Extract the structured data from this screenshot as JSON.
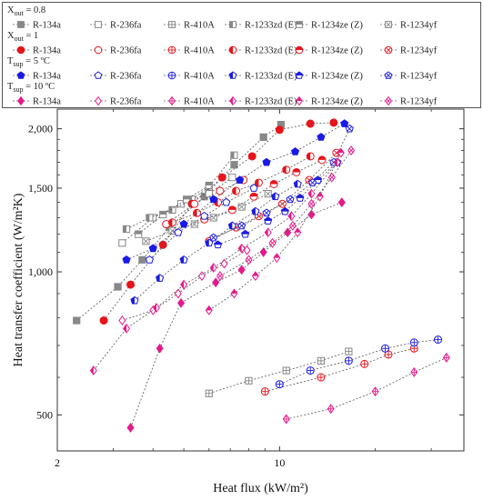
{
  "chart_data": {
    "type": "scatter",
    "xlabel": "Heat flux (kW/m²)",
    "ylabel": "Heat transfer coefficient (W/m²K)",
    "x_scale": "log",
    "y_scale": "log",
    "xlim": [
      2,
      38
    ],
    "ylim": [
      420,
      2200
    ],
    "x_ticks": [
      {
        "value": 2,
        "label": "2"
      },
      {
        "value": 10,
        "label": "10"
      }
    ],
    "y_ticks": [
      {
        "value": 500,
        "label": "500"
      },
      {
        "value": 1000,
        "label": "1,000"
      },
      {
        "value": 1500,
        "label": "1,500"
      },
      {
        "value": 2000,
        "label": "2,000"
      }
    ],
    "legend_position": "top",
    "refrigerants": [
      "R-134a",
      "R-236fa",
      "R-410A",
      "R-1233zd (E)",
      "R-1234ze (Z)",
      "R-1234yf"
    ],
    "groups": [
      {
        "title": "X",
        "sub": "out",
        "rest": " = 0.8",
        "color": "#888888"
      },
      {
        "title": "X",
        "sub": "out",
        "rest": " = 1",
        "color": "#e8141c"
      },
      {
        "title": "T",
        "sub": "sup",
        "rest": " = 5 ºC",
        "color": "#1a1ae6"
      },
      {
        "title": "T",
        "sub": "sup",
        "rest": " = 10 ºC",
        "color": "#e6198c"
      }
    ],
    "series": [
      {
        "group": 0,
        "name": "R-134a",
        "marker": "square-filled",
        "x": [
          2.3,
          3.1,
          3.7,
          4.5,
          5.8,
          7.2,
          8.9,
          10.1
        ],
        "y": [
          790,
          930,
          1060,
          1240,
          1440,
          1680,
          1920,
          2040
        ]
      },
      {
        "group": 0,
        "name": "R-236fa",
        "marker": "square-open",
        "x": [
          3.2,
          4.0,
          4.9,
          6.0,
          7.1
        ],
        "y": [
          1150,
          1300,
          1390,
          1460,
          1580
        ]
      },
      {
        "group": 0,
        "name": "R-410A",
        "marker": "square-cross",
        "x": [
          6.0,
          8.0,
          10.5,
          13.5,
          16.5
        ],
        "y": [
          555,
          590,
          620,
          650,
          680
        ]
      },
      {
        "group": 0,
        "name": "R-1233zd (E)",
        "marker": "square-half-left",
        "x": [
          3.3,
          3.9,
          4.6,
          5.3,
          6.0,
          7.2
        ],
        "y": [
          1230,
          1300,
          1350,
          1420,
          1510,
          1760
        ]
      },
      {
        "group": 0,
        "name": "R-1234ze (Z)",
        "marker": "square-half-top",
        "x": [
          3.6,
          4.3,
          5.1,
          6.0
        ],
        "y": [
          1200,
          1320,
          1420,
          1520
        ]
      },
      {
        "group": 0,
        "name": "R-1234yf",
        "marker": "square-x",
        "x": [
          3.8,
          4.6,
          5.4,
          6.2,
          7.6,
          9.2
        ],
        "y": [
          1160,
          1220,
          1260,
          1300,
          1370,
          1460
        ]
      },
      {
        "group": 1,
        "name": "R-134a",
        "marker": "circle-filled",
        "x": [
          2.8,
          3.4,
          4.3,
          5.3,
          6.6,
          8.2,
          10.0,
          12.5,
          14.8
        ],
        "y": [
          790,
          940,
          1140,
          1390,
          1580,
          1750,
          1990,
          2050,
          2060
        ]
      },
      {
        "group": 1,
        "name": "R-236fa",
        "marker": "circle-open",
        "x": [
          4.4,
          5.4,
          6.5,
          7.7
        ],
        "y": [
          1260,
          1390,
          1480,
          1560
        ]
      },
      {
        "group": 1,
        "name": "R-410A",
        "marker": "circle-cross",
        "x": [
          9.0,
          13.5,
          18.5,
          22.0,
          26.5
        ],
        "y": [
          560,
          600,
          640,
          670,
          690
        ]
      },
      {
        "group": 1,
        "name": "R-1233zd (E)",
        "marker": "circle-half-left",
        "x": [
          4.6,
          5.5,
          6.4,
          7.3,
          8.6,
          10.5,
          12.5
        ],
        "y": [
          1270,
          1330,
          1400,
          1480,
          1540,
          1640,
          1750
        ]
      },
      {
        "group": 1,
        "name": "R-1234ze (Z)",
        "marker": "circle-half-top",
        "x": [
          5.8,
          7.1,
          8.3,
          9.6,
          11.3,
          13.6
        ],
        "y": [
          1290,
          1350,
          1440,
          1530,
          1620,
          1720
        ]
      },
      {
        "group": 1,
        "name": "R-1234yf",
        "marker": "circle-x",
        "x": [
          6.0,
          7.3,
          8.6,
          10.2,
          12.4,
          15.1
        ],
        "y": [
          1160,
          1240,
          1310,
          1390,
          1560,
          1780
        ]
      },
      {
        "group": 2,
        "name": "R-134a",
        "marker": "pentagon-filled",
        "x": [
          3.3,
          4.0,
          5.0,
          6.2,
          7.5,
          9.1,
          11.2,
          13.5,
          16.0
        ],
        "y": [
          1060,
          1120,
          1260,
          1420,
          1560,
          1700,
          1790,
          1920,
          2050
        ]
      },
      {
        "group": 2,
        "name": "R-236fa",
        "marker": "pentagon-open",
        "x": [
          3.9,
          4.8,
          5.8,
          6.8,
          8.3
        ],
        "y": [
          1060,
          1210,
          1310,
          1400,
          1500
        ]
      },
      {
        "group": 2,
        "name": "R-410A",
        "marker": "circle-cross",
        "x": [
          10.0,
          12.5,
          16.5,
          21.5,
          26.5,
          31.5
        ],
        "y": [
          580,
          620,
          650,
          690,
          710,
          720
        ]
      },
      {
        "group": 2,
        "name": "R-1233zd (E)",
        "marker": "pentagon-half-left",
        "x": [
          3.5,
          4.2,
          5.0,
          6.0,
          7.1,
          8.4,
          9.7,
          11.4
        ],
        "y": [
          870,
          970,
          1060,
          1150,
          1250,
          1340,
          1440,
          1530
        ]
      },
      {
        "group": 2,
        "name": "R-1234ze (Z)",
        "marker": "pentagon-half-top",
        "x": [
          6.4,
          7.8,
          9.2,
          10.4,
          11.6,
          13.2,
          15.2
        ],
        "y": [
          1140,
          1200,
          1280,
          1340,
          1430,
          1560,
          1700
        ]
      },
      {
        "group": 2,
        "name": "R-1234yf",
        "marker": "pentagon-x",
        "x": [
          6.2,
          7.6,
          9.1,
          10.8,
          12.7,
          14.8,
          16.6
        ],
        "y": [
          1180,
          1250,
          1330,
          1420,
          1540,
          1700,
          2000
        ]
      },
      {
        "group": 3,
        "name": "R-134a",
        "marker": "diamond-filled",
        "x": [
          3.4,
          4.2,
          4.9,
          6.3,
          7.6,
          8.9,
          10.6,
          12.6,
          15.7
        ],
        "y": [
          470,
          690,
          860,
          950,
          1010,
          1100,
          1210,
          1320,
          1400
        ]
      },
      {
        "group": 3,
        "name": "R-236fa",
        "marker": "diamond-open",
        "x": [
          3.2,
          4.0,
          4.8,
          5.7,
          6.7,
          7.9
        ],
        "y": [
          790,
          830,
          900,
          980,
          1040,
          1110
        ]
      },
      {
        "group": 3,
        "name": "R-410A",
        "marker": "diamond-cross",
        "x": [
          10.5,
          14.5,
          20.0,
          26.5,
          33.5
        ],
        "y": [
          490,
          515,
          560,
          615,
          660
        ]
      },
      {
        "group": 3,
        "name": "R-1233zd (E)",
        "marker": "diamond-half-left",
        "x": [
          2.6,
          3.3,
          4.1,
          5.0,
          6.2,
          7.6,
          9.2,
          10.9,
          12.6,
          15.2
        ],
        "y": [
          620,
          760,
          840,
          940,
          1020,
          1120,
          1210,
          1310,
          1460,
          1700
        ]
      },
      {
        "group": 3,
        "name": "R-1234ze (Z)",
        "marker": "diamond-half-top",
        "x": [
          6.0,
          7.2,
          8.4,
          9.8,
          11.4,
          13.4,
          15.6
        ],
        "y": [
          830,
          900,
          980,
          1070,
          1210,
          1440,
          1780
        ]
      },
      {
        "group": 3,
        "name": "R-1234yf",
        "marker": "diamond-x",
        "x": [
          6.5,
          8.0,
          9.5,
          11.0,
          12.6,
          14.6,
          16.8
        ],
        "y": [
          980,
          1060,
          1150,
          1250,
          1390,
          1580,
          1800
        ]
      }
    ]
  }
}
